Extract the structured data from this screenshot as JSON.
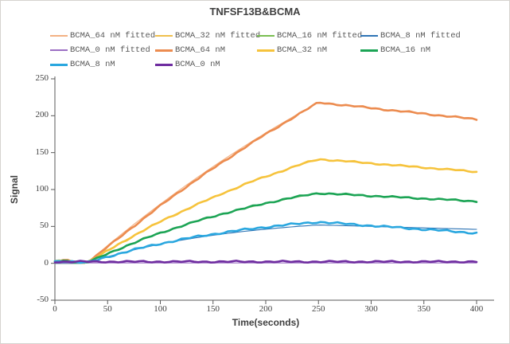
{
  "chart_data": {
    "type": "line",
    "title": "TNFSF13B&BCMA",
    "xlabel": "Time(seconds)",
    "ylabel": "Signal",
    "xlim": [
      0,
      416
    ],
    "ylim": [
      -50,
      250
    ],
    "xticks": [
      0,
      50,
      100,
      150,
      200,
      250,
      300,
      350,
      400
    ],
    "yticks": [
      -50,
      0,
      50,
      100,
      150,
      200,
      250
    ],
    "grid": false,
    "legend_position": "top",
    "axis_color": "#595959",
    "tick_label_color": "#3f3f3f",
    "t": [
      0,
      10,
      20,
      30,
      40,
      50,
      60,
      70,
      80,
      90,
      100,
      110,
      120,
      130,
      140,
      150,
      160,
      170,
      180,
      190,
      200,
      210,
      220,
      230,
      240,
      250,
      260,
      270,
      280,
      290,
      300,
      310,
      320,
      330,
      340,
      350,
      360,
      370,
      380,
      390,
      400
    ],
    "series": [
      {
        "name": "BCMA_64 nM fitted",
        "color": "#F3B183",
        "width": 1.1,
        "noise": 0,
        "seed": 0,
        "y": [
          0,
          0,
          0,
          0,
          12.2,
          24.1,
          35.8,
          47.3,
          58.5,
          69.5,
          80.3,
          90.8,
          101.2,
          111.3,
          121.2,
          131,
          140.5,
          149.8,
          159,
          167.9,
          176.7,
          185.3,
          193.7,
          202,
          210.1,
          218,
          216.5,
          214.9,
          213.4,
          211.9,
          210.3,
          208.8,
          207.3,
          205.7,
          204.2,
          202.7,
          201.1,
          199.6,
          198.1,
          196.5,
          195
        ]
      },
      {
        "name": "BCMA_32 nM fitted",
        "color": "#EFBF4D",
        "width": 1.1,
        "noise": 0,
        "seed": 0,
        "y": [
          0,
          0,
          0,
          0,
          8.9,
          17.5,
          25.9,
          33.9,
          41.7,
          49.3,
          56.6,
          63.6,
          70.4,
          77,
          83.4,
          89.6,
          95.6,
          101.3,
          106.9,
          112.3,
          117.5,
          122.5,
          127.4,
          132.1,
          136.7,
          141,
          139.9,
          138.7,
          137.6,
          136.5,
          135.3,
          134.2,
          133.1,
          131.9,
          130.8,
          129.7,
          128.5,
          127.4,
          126.3,
          125.1,
          124
        ]
      },
      {
        "name": "BCMA_16 nM fitted",
        "color": "#79BE51",
        "width": 1.1,
        "noise": 0,
        "seed": 0,
        "y": [
          0,
          0,
          0,
          0,
          6.7,
          13.1,
          19.2,
          25,
          30.6,
          35.9,
          41,
          45.8,
          50.5,
          54.9,
          59.1,
          63.2,
          67,
          70.7,
          74.3,
          77.6,
          80.9,
          83.9,
          86.9,
          89.7,
          92.4,
          95,
          94.3,
          93.5,
          92.8,
          92.1,
          91.3,
          90.6,
          89.9,
          89.1,
          88.4,
          87.7,
          86.9,
          86.2,
          85.5,
          84.7,
          84
        ]
      },
      {
        "name": "BCMA_8 nM fitted",
        "color": "#2E74B5",
        "width": 1.1,
        "noise": 0,
        "seed": 0,
        "y": [
          0,
          0,
          0,
          0,
          4.6,
          8.9,
          12.8,
          16.5,
          19.9,
          23.1,
          26.1,
          28.8,
          31.4,
          33.7,
          36,
          38,
          39.9,
          41.7,
          43.3,
          44.9,
          46.3,
          47.6,
          48.8,
          50,
          51,
          52,
          51.6,
          51.2,
          50.8,
          50.4,
          50,
          49.6,
          49.2,
          48.8,
          48.4,
          48,
          47.6,
          47.2,
          46.8,
          46.4,
          46
        ]
      },
      {
        "name": "BCMA_0 nM fitted",
        "color": "#9C6FC4",
        "width": 1.1,
        "noise": 0,
        "seed": 0,
        "y": [
          0.5,
          0.5,
          0.5,
          0.5,
          0.5,
          0.5,
          0.5,
          0.5,
          0.5,
          0.5,
          0.5,
          0.5,
          0.5,
          0.5,
          0.5,
          0.5,
          0.5,
          0.5,
          0.5,
          0.5,
          0.5,
          0.5,
          0.5,
          0.5,
          0.5,
          0.5,
          0.5,
          0.5,
          0.5,
          0.5,
          0.5,
          0.5,
          0.5,
          0.5,
          0.5,
          0.5,
          0.5,
          0.5,
          0.5,
          0.5,
          0.5
        ]
      },
      {
        "name": "BCMA_64 nM",
        "color": "#EC8C50",
        "width": 2.6,
        "noise": 1.2,
        "seed": 1,
        "y": [
          2.5,
          4,
          2.2,
          1,
          11,
          22.5,
          33.5,
          45,
          56,
          67,
          78,
          88.5,
          99,
          109,
          119,
          128.5,
          138,
          147.5,
          157,
          166,
          175,
          183.5,
          192.5,
          201,
          209.5,
          218,
          216.5,
          215,
          213.5,
          212,
          210.4,
          208.8,
          207.3,
          205.8,
          204.3,
          202.8,
          201.2,
          199.7,
          198.2,
          196.6,
          195
        ]
      },
      {
        "name": "BCMA_32 nM",
        "color": "#F6C33C",
        "width": 2.6,
        "noise": 1.1,
        "seed": 2,
        "y": [
          2.5,
          3.5,
          2,
          1,
          8.5,
          17,
          25.5,
          33.5,
          41.5,
          49,
          56.5,
          63.5,
          70,
          76.5,
          83,
          89,
          95.5,
          101,
          107,
          112.5,
          117.5,
          122.5,
          127.5,
          132.5,
          137,
          141,
          140,
          139,
          138,
          136.5,
          135.5,
          134.3,
          133.2,
          132,
          131,
          129.8,
          128.6,
          127.5,
          126.4,
          125.2,
          124
        ]
      },
      {
        "name": "BCMA_16 nM",
        "color": "#1CA455",
        "width": 2.6,
        "noise": 1.2,
        "seed": 3,
        "y": [
          2.5,
          3.5,
          2,
          1,
          6.5,
          13,
          19,
          25,
          30.5,
          36,
          41,
          46,
          50.5,
          55,
          59.5,
          63.5,
          67.5,
          71,
          74.5,
          78,
          81.5,
          84.5,
          87.5,
          90,
          92.8,
          95,
          94.4,
          93.6,
          92.9,
          92.2,
          91.4,
          90.7,
          90,
          89.2,
          88.5,
          87.8,
          87,
          86.3,
          85.6,
          84.8,
          84
        ]
      },
      {
        "name": "BCMA_8 nM",
        "color": "#2AA7DF",
        "width": 2.6,
        "noise": 1.5,
        "seed": 4,
        "y": [
          2.5,
          3.5,
          2,
          0.5,
          4.5,
          8.8,
          12.8,
          16.6,
          20.1,
          23.5,
          26.6,
          29.5,
          32.3,
          34.9,
          37.3,
          39.6,
          41.7,
          43.7,
          45.6,
          47.4,
          49.1,
          50.6,
          52.1,
          53.5,
          54.8,
          56,
          55,
          54,
          53,
          52,
          51,
          50,
          49,
          48,
          47,
          46,
          45,
          44,
          43,
          42,
          41
        ]
      },
      {
        "name": "BCMA_0 nM",
        "color": "#6F2DA0",
        "width": 2.6,
        "noise": 1.3,
        "seed": 5,
        "y": [
          2.2,
          2.2,
          2.2,
          2.2,
          2.2,
          2.2,
          2.2,
          2.2,
          2.2,
          2.2,
          2.2,
          2.2,
          2.2,
          2.2,
          2.2,
          2.2,
          2.2,
          2.2,
          2.2,
          2.2,
          2.2,
          2.2,
          2.2,
          2.2,
          2.2,
          2.2,
          2.2,
          2.2,
          2.2,
          2.2,
          2.2,
          2.2,
          2.2,
          2.2,
          2.2,
          2.2,
          2.2,
          2.2,
          2.2,
          2.2,
          2.2
        ]
      }
    ],
    "legend": {
      "rows": [
        [
          0,
          1,
          2,
          3
        ],
        [
          4,
          5,
          6,
          7
        ],
        [
          8,
          9
        ]
      ]
    }
  }
}
